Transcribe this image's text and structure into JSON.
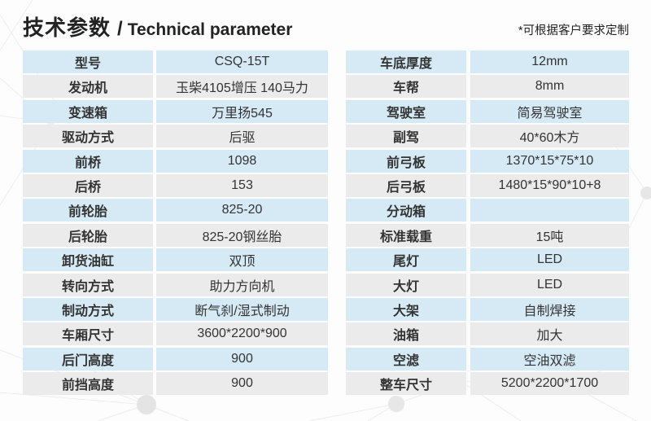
{
  "header": {
    "title_zh": "技术参数",
    "title_sep": "/",
    "title_en": "Technical parameter",
    "note": "*可根据客户要求定制"
  },
  "colors": {
    "row_blue": "#d6eaf6",
    "row_gray": "#ebebeb",
    "text": "#333333"
  },
  "left_table": {
    "rows": [
      {
        "label": "型号",
        "value": "CSQ-15T"
      },
      {
        "label": "发动机",
        "value": "玉柴4105增压 140马力"
      },
      {
        "label": "变速箱",
        "value": "万里扬545"
      },
      {
        "label": "驱动方式",
        "value": "后驱"
      },
      {
        "label": "前桥",
        "value": "1098"
      },
      {
        "label": "后桥",
        "value": "153"
      },
      {
        "label": "前轮胎",
        "value": "825-20"
      },
      {
        "label": "后轮胎",
        "value": "825-20钢丝胎"
      },
      {
        "label": "卸货油缸",
        "value": "双顶"
      },
      {
        "label": "转向方式",
        "value": "助力方向机"
      },
      {
        "label": "制动方式",
        "value": "断气刹/湿式制动"
      },
      {
        "label": "车厢尺寸",
        "value": "3600*2200*900"
      },
      {
        "label": "后门高度",
        "value": "900"
      },
      {
        "label": "前挡高度",
        "value": "900"
      }
    ]
  },
  "right_table": {
    "rows": [
      {
        "label": "车底厚度",
        "value": "12mm"
      },
      {
        "label": "车帮",
        "value": "8mm"
      },
      {
        "label": "驾驶室",
        "value": "简易驾驶室"
      },
      {
        "label": "副驾",
        "value": "40*60木方"
      },
      {
        "label": "前弓板",
        "value": "1370*15*75*10"
      },
      {
        "label": "后弓板",
        "value": "1480*15*90*10+8"
      },
      {
        "label": "分动箱",
        "value": ""
      },
      {
        "label": "标准载重",
        "value": "15吨"
      },
      {
        "label": "尾灯",
        "value": "LED"
      },
      {
        "label": "大灯",
        "value": "LED"
      },
      {
        "label": "大架",
        "value": "自制焊接"
      },
      {
        "label": "油箱",
        "value": "加大"
      },
      {
        "label": "空滤",
        "value": "空油双滤"
      },
      {
        "label": "整车尺寸",
        "value": "5200*2200*1700"
      }
    ]
  }
}
